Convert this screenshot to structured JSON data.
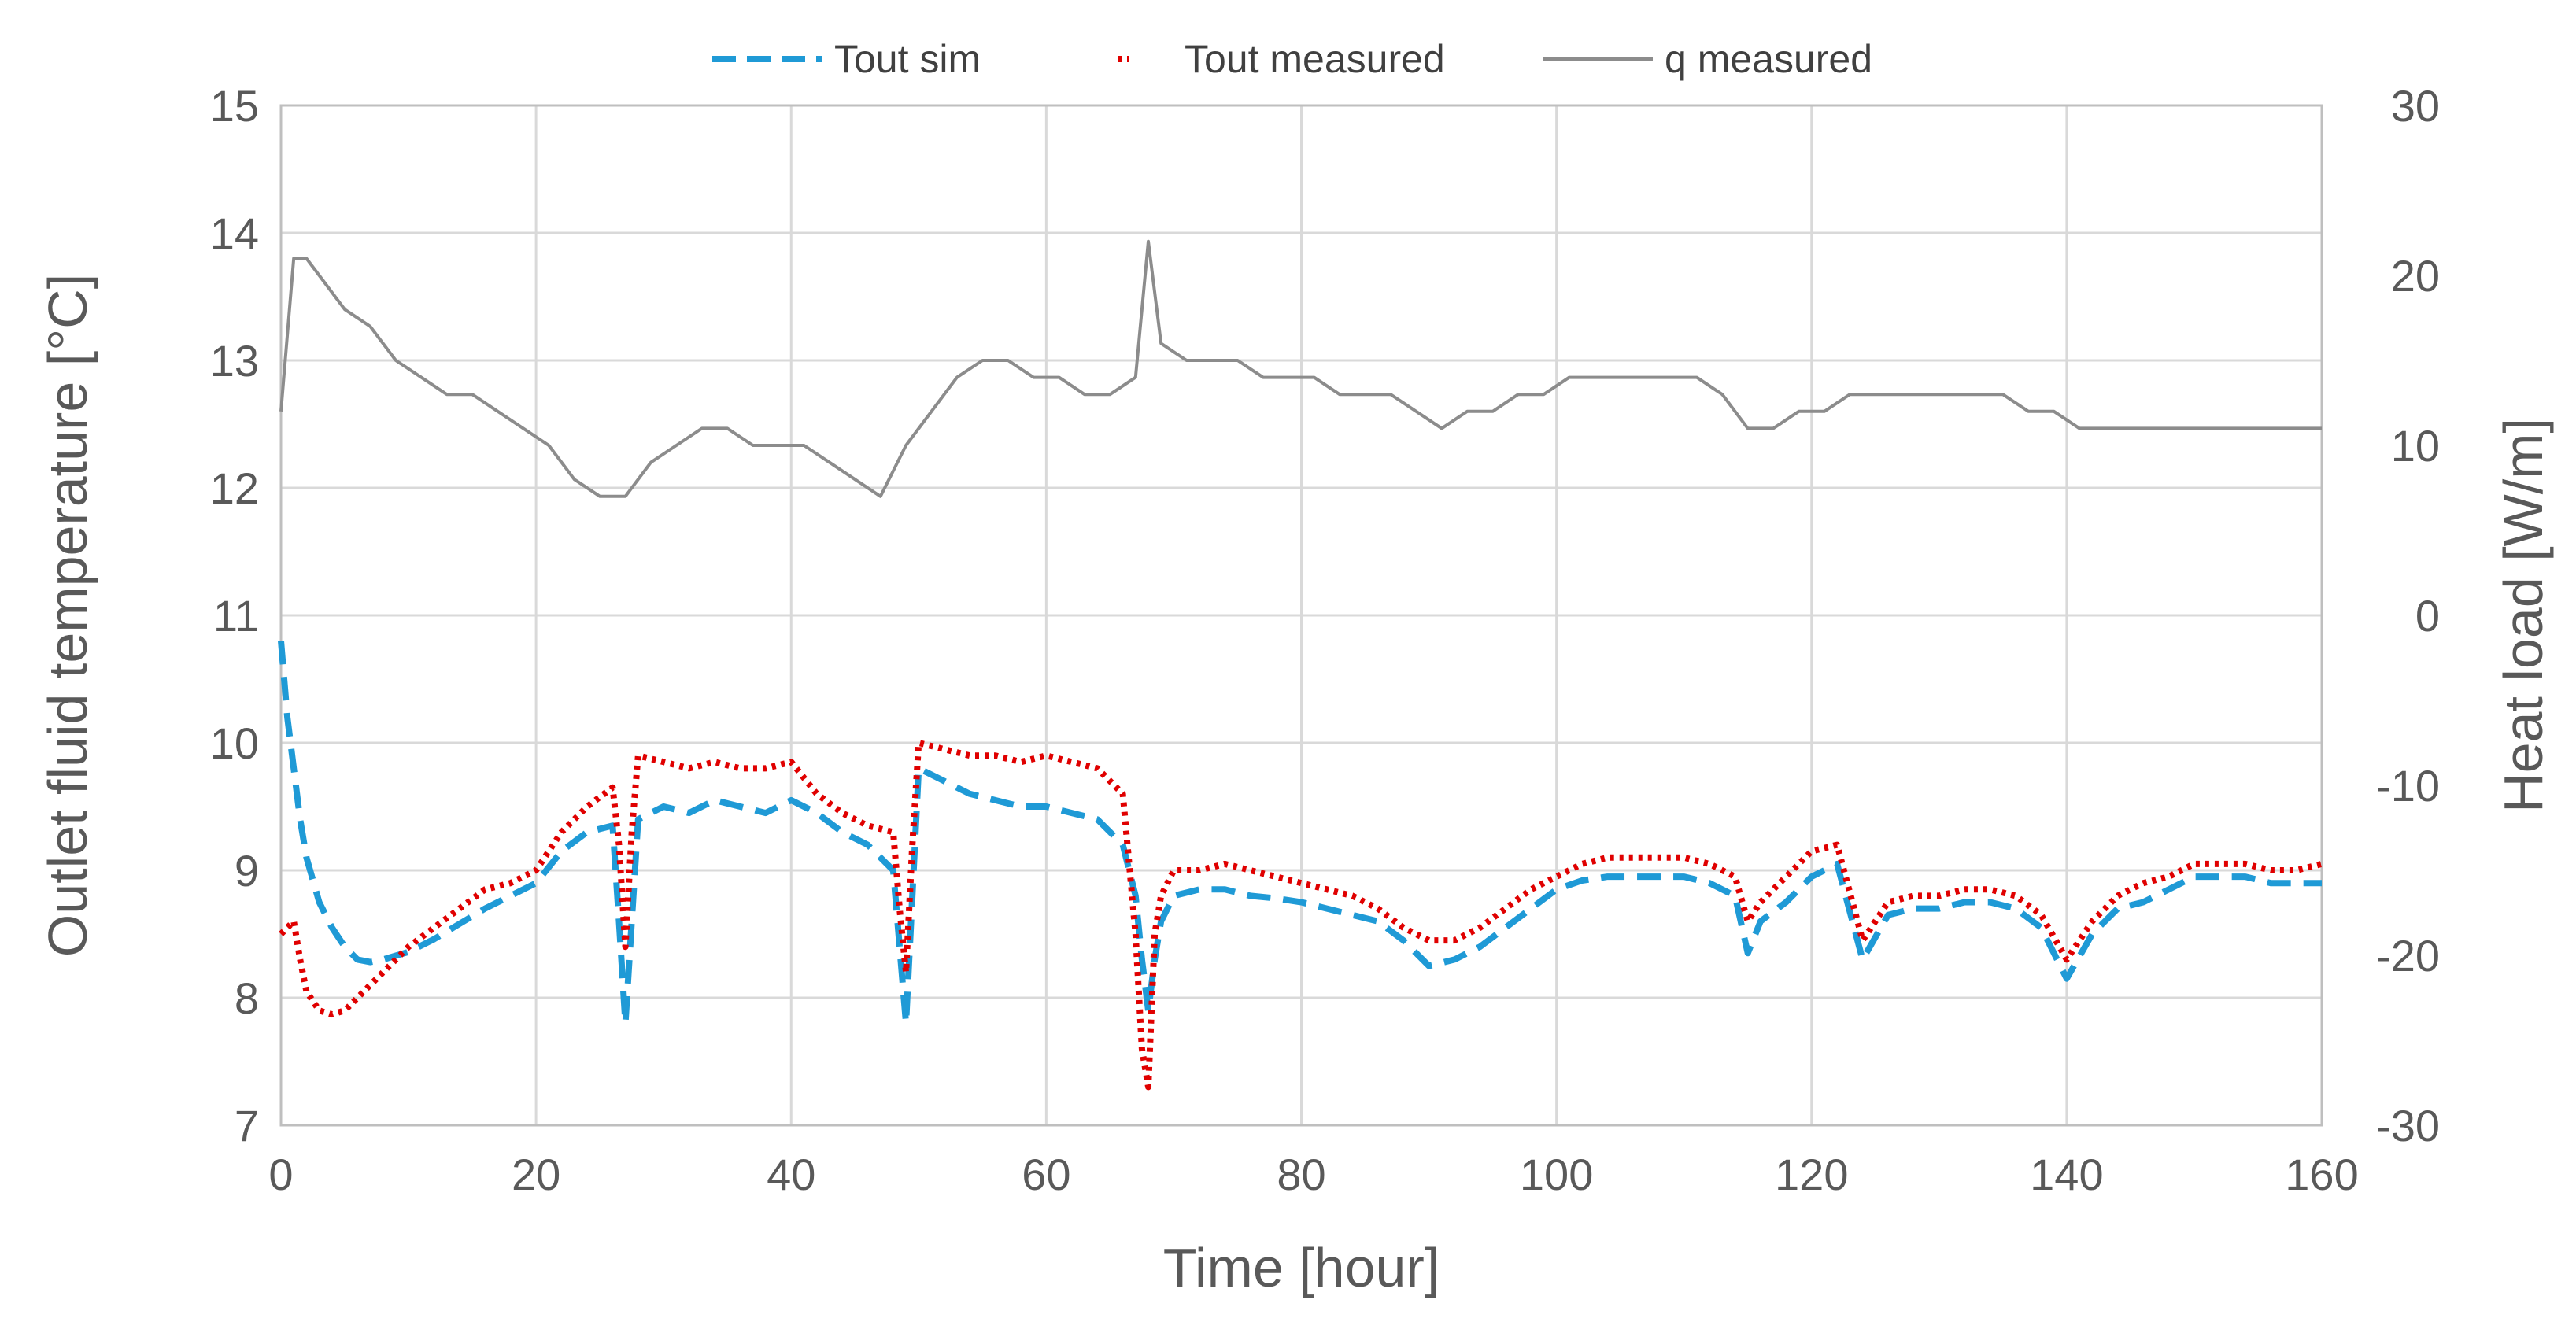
{
  "chart_data": {
    "type": "line",
    "xlabel": "Time [hour]",
    "ylabel_left": "Outlet fluid temperature [°C]",
    "ylabel_right": "Heat load [W/m]",
    "xlim": [
      0,
      160
    ],
    "ylim_left": [
      7,
      15
    ],
    "ylim_right": [
      -30,
      30
    ],
    "x_ticks": [
      "0",
      "20",
      "40",
      "60",
      "80",
      "100",
      "120",
      "140",
      "160"
    ],
    "y_left_ticks": [
      "7",
      "8",
      "9",
      "10",
      "11",
      "12",
      "13",
      "14",
      "15"
    ],
    "y_right_ticks": [
      "-30",
      "-20",
      "-10",
      "0",
      "10",
      "20",
      "30"
    ],
    "grid": true,
    "legend_position": "top",
    "colors": {
      "tout_sim": "#1f9ad6",
      "tout_measured": "#e00000",
      "q_measured": "#8c8c8c",
      "grid": "#d9d9d9",
      "text": "#595959"
    },
    "series": [
      {
        "name": "Tout sim",
        "axis": "left",
        "style": "dashed",
        "x": [
          0,
          0.5,
          1,
          1.5,
          2,
          3,
          4,
          5,
          6,
          7,
          8,
          9,
          10,
          12,
          14,
          16,
          18,
          20,
          22,
          24,
          26,
          26.5,
          27,
          27.5,
          28,
          30,
          32,
          34,
          36,
          38,
          40,
          42,
          44,
          46,
          48,
          48.5,
          49,
          49.5,
          50,
          52,
          54,
          56,
          58,
          60,
          62,
          64,
          66,
          67,
          67.5,
          68,
          68.5,
          69,
          70,
          72,
          74,
          76,
          78,
          80,
          82,
          84,
          86,
          88,
          90,
          92,
          94,
          96,
          98,
          100,
          102,
          104,
          106,
          108,
          110,
          112,
          114,
          115,
          116,
          118,
          120,
          122,
          124,
          126,
          128,
          130,
          132,
          134,
          136,
          138,
          140,
          142,
          144,
          146,
          148,
          150,
          152,
          154,
          156,
          158,
          160
        ],
        "values": [
          10.8,
          10.2,
          9.8,
          9.4,
          9.1,
          8.75,
          8.55,
          8.4,
          8.3,
          8.28,
          8.3,
          8.33,
          8.36,
          8.46,
          8.58,
          8.7,
          8.8,
          8.9,
          9.15,
          9.3,
          9.35,
          8.6,
          7.8,
          8.6,
          9.4,
          9.5,
          9.45,
          9.55,
          9.5,
          9.45,
          9.55,
          9.45,
          9.3,
          9.2,
          9.0,
          8.4,
          7.8,
          8.8,
          9.8,
          9.7,
          9.6,
          9.55,
          9.5,
          9.5,
          9.45,
          9.4,
          9.2,
          8.8,
          8.3,
          7.9,
          8.3,
          8.6,
          8.8,
          8.85,
          8.85,
          8.8,
          8.78,
          8.75,
          8.7,
          8.65,
          8.6,
          8.45,
          8.25,
          8.3,
          8.4,
          8.55,
          8.7,
          8.85,
          8.92,
          8.95,
          8.95,
          8.95,
          8.95,
          8.9,
          8.8,
          8.35,
          8.6,
          8.75,
          8.95,
          9.05,
          8.3,
          8.65,
          8.7,
          8.7,
          8.75,
          8.75,
          8.7,
          8.55,
          8.15,
          8.5,
          8.7,
          8.75,
          8.85,
          8.95,
          8.95,
          8.95,
          8.9,
          8.9,
          8.9
        ]
      },
      {
        "name": "Tout measured",
        "axis": "left",
        "style": "dotted",
        "x": [
          0,
          0.5,
          1,
          1.5,
          2,
          3,
          4,
          5,
          6,
          7,
          8,
          9,
          10,
          12,
          14,
          16,
          18,
          20,
          22,
          24,
          26,
          26.5,
          27,
          27.5,
          28,
          30,
          32,
          34,
          36,
          38,
          40,
          42,
          44,
          46,
          48,
          48.5,
          49,
          49.5,
          50,
          52,
          54,
          56,
          58,
          60,
          62,
          64,
          66,
          67,
          67.5,
          68,
          68.5,
          69,
          70,
          72,
          74,
          76,
          78,
          80,
          82,
          84,
          86,
          88,
          90,
          92,
          94,
          96,
          98,
          100,
          102,
          104,
          106,
          108,
          110,
          112,
          114,
          115,
          116,
          118,
          120,
          122,
          124,
          126,
          128,
          130,
          132,
          134,
          136,
          138,
          140,
          142,
          144,
          146,
          148,
          150,
          152,
          154,
          156,
          158,
          160
        ],
        "values": [
          8.5,
          8.55,
          8.6,
          8.3,
          8.05,
          7.9,
          7.87,
          7.9,
          8.0,
          8.1,
          8.2,
          8.3,
          8.4,
          8.55,
          8.7,
          8.85,
          8.9,
          9.0,
          9.3,
          9.5,
          9.65,
          9.2,
          8.4,
          9.3,
          9.9,
          9.85,
          9.8,
          9.85,
          9.8,
          9.8,
          9.85,
          9.6,
          9.45,
          9.35,
          9.3,
          8.7,
          8.2,
          9.2,
          10.0,
          9.95,
          9.9,
          9.9,
          9.85,
          9.9,
          9.85,
          9.8,
          9.6,
          8.5,
          7.6,
          7.3,
          8.5,
          8.8,
          9.0,
          9.0,
          9.05,
          9.0,
          8.95,
          8.9,
          8.85,
          8.8,
          8.7,
          8.55,
          8.45,
          8.45,
          8.55,
          8.7,
          8.85,
          8.95,
          9.05,
          9.1,
          9.1,
          9.1,
          9.1,
          9.05,
          8.95,
          8.6,
          8.75,
          8.95,
          9.15,
          9.2,
          8.45,
          8.75,
          8.8,
          8.8,
          8.85,
          8.85,
          8.8,
          8.65,
          8.3,
          8.6,
          8.8,
          8.9,
          8.95,
          9.05,
          9.05,
          9.05,
          9.0,
          9.0,
          9.05
        ]
      },
      {
        "name": "q measured",
        "axis": "right",
        "style": "solid",
        "x": [
          0,
          1,
          2,
          3,
          5,
          7,
          9,
          11,
          13,
          15,
          17,
          19,
          21,
          23,
          25,
          27,
          29,
          31,
          33,
          35,
          37,
          39,
          41,
          43,
          45,
          47,
          49,
          51,
          53,
          55,
          57,
          59,
          61,
          63,
          65,
          67,
          68,
          69,
          71,
          73,
          75,
          77,
          79,
          81,
          83,
          85,
          87,
          89,
          91,
          93,
          95,
          97,
          99,
          101,
          103,
          105,
          107,
          109,
          111,
          113,
          115,
          117,
          119,
          121,
          123,
          125,
          127,
          129,
          131,
          133,
          135,
          137,
          139,
          141,
          143,
          145,
          147,
          149,
          151,
          153,
          155,
          157,
          159,
          160
        ],
        "values": [
          12,
          21,
          21,
          20,
          18,
          17,
          15,
          14,
          13,
          13,
          12,
          11,
          10,
          8,
          7,
          7,
          9,
          10,
          11,
          11,
          10,
          10,
          10,
          9,
          8,
          7,
          10,
          12,
          14,
          15,
          15,
          14,
          14,
          13,
          13,
          14,
          22,
          16,
          15,
          15,
          15,
          14,
          14,
          14,
          13,
          13,
          13,
          12,
          11,
          12,
          12,
          13,
          13,
          14,
          14,
          14,
          14,
          14,
          14,
          13,
          11,
          11,
          12,
          12,
          13,
          13,
          13,
          13,
          13,
          13,
          13,
          12,
          12,
          11,
          11,
          11,
          11,
          11,
          11,
          11,
          11,
          11,
          11,
          11
        ]
      }
    ]
  }
}
